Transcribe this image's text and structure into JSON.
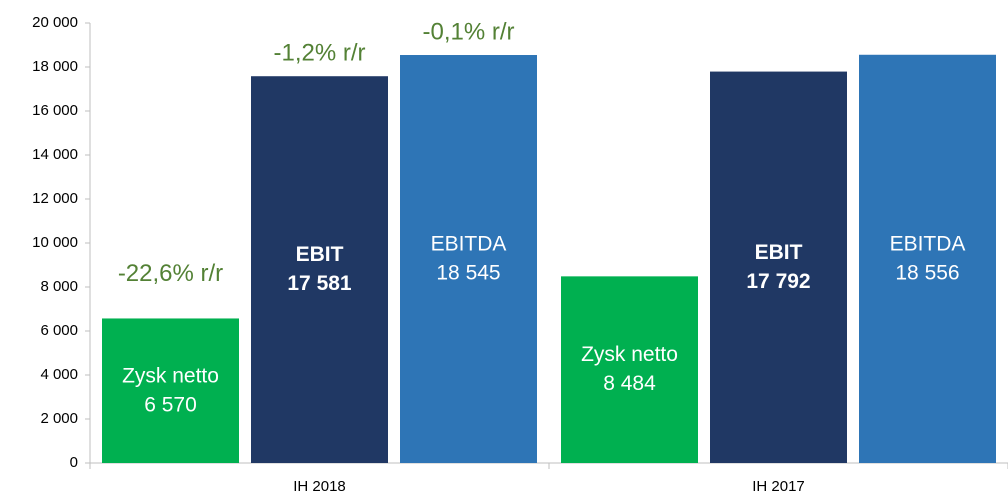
{
  "chart_data": {
    "type": "bar",
    "categories": [
      "IH 2018",
      "IH 2017"
    ],
    "series": [
      {
        "name": "Zysk netto",
        "color": "#00b050",
        "bold": false,
        "values": [
          6570,
          8484
        ],
        "value_labels": [
          "6 570",
          "8 484"
        ]
      },
      {
        "name": "EBIT",
        "color": "#203864",
        "bold": true,
        "values": [
          17581,
          17792
        ],
        "value_labels": [
          "17 581",
          "17 792"
        ]
      },
      {
        "name": "EBITDA",
        "color": "#2e75b6",
        "bold": false,
        "values": [
          18545,
          18556
        ],
        "value_labels": [
          "18 545",
          "18 556"
        ]
      }
    ],
    "annotations": [
      "-22,6% r/r",
      "-1,2% r/r",
      "-0,1% r/r"
    ],
    "annotation_color": "#538135",
    "ylim": [
      0,
      20000
    ],
    "yticks": [
      0,
      {
        "value": 2000,
        "label": "2 000"
      },
      {
        "value": 4000,
        "label": "4 000"
      },
      {
        "value": 6000,
        "label": "6 000"
      },
      {
        "value": 8000,
        "label": "8 000"
      },
      {
        "value": 10000,
        "label": "10 000"
      },
      {
        "value": 12000,
        "label": "12 000"
      },
      {
        "value": 14000,
        "label": "14 000"
      },
      {
        "value": 16000,
        "label": "16 000"
      },
      {
        "value": 18000,
        "label": "18 000"
      },
      {
        "value": 20000,
        "label": "20 000"
      }
    ],
    "grid": false
  }
}
